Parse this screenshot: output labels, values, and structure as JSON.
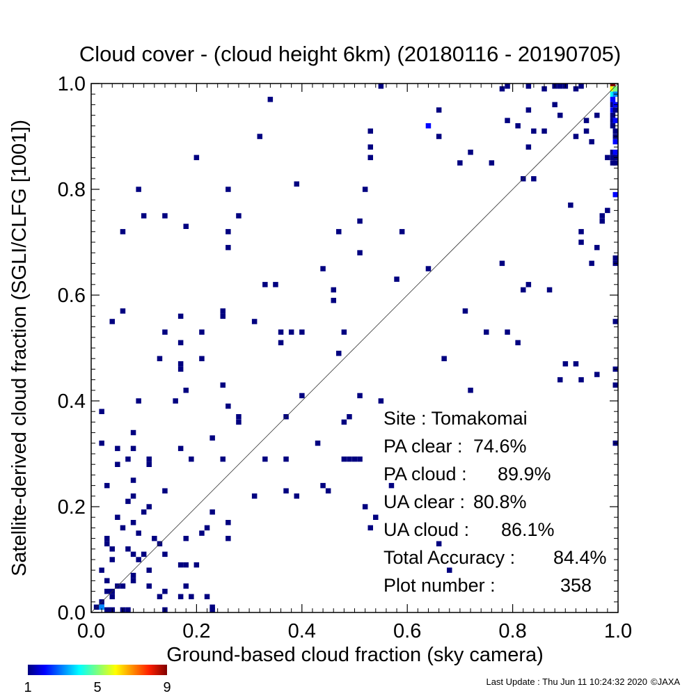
{
  "chart_data": {
    "type": "heatmap",
    "title": "Cloud cover - (cloud height 6km)  (20180116 - 20190705)",
    "xlabel": "Ground-based cloud fraction (sky camera)",
    "ylabel": "Satellite-derived cloud fraction (SGLI/CLFG [1001])",
    "xlim": [
      0.0,
      1.0
    ],
    "ylim": [
      0.0,
      1.0
    ],
    "x_ticks": [
      "0.0",
      "0.2",
      "0.4",
      "0.6",
      "0.8",
      "1.0"
    ],
    "y_ticks": [
      "0.0",
      "0.2",
      "0.4",
      "0.6",
      "0.8",
      "1.0"
    ],
    "grid": false,
    "reference_line": "1:1 diagonal",
    "colorbar": {
      "min": 1,
      "max": 9,
      "tick_labels": [
        "1",
        "5",
        "9"
      ]
    },
    "stats": [
      {
        "label": "Site : Tomakomai",
        "value": ""
      },
      {
        "label": "PA clear :",
        "value": "74.6%"
      },
      {
        "label": "PA cloud :",
        "value": "89.9%"
      },
      {
        "label": "UA clear :",
        "value": "80.8%"
      },
      {
        "label": "UA cloud :",
        "value": "86.1%"
      },
      {
        "label": "Total Accuracy :",
        "value": "84.4%"
      },
      {
        "label": "Plot number :",
        "value": "358"
      }
    ],
    "points": [
      [
        0.2,
        0.86,
        1
      ],
      [
        0.34,
        0.97,
        1
      ],
      [
        0.32,
        0.9,
        1
      ],
      [
        0.55,
        1.0,
        1
      ],
      [
        0.53,
        0.91,
        1
      ],
      [
        0.53,
        0.88,
        1
      ],
      [
        0.53,
        0.86,
        1
      ],
      [
        0.64,
        0.92,
        2
      ],
      [
        0.66,
        0.95,
        1
      ],
      [
        0.66,
        0.9,
        1
      ],
      [
        0.7,
        0.85,
        1
      ],
      [
        0.72,
        0.87,
        1
      ],
      [
        0.76,
        0.85,
        1
      ],
      [
        0.79,
        1.0,
        1
      ],
      [
        0.79,
        0.93,
        1
      ],
      [
        0.81,
        0.92,
        1
      ],
      [
        0.83,
        0.95,
        1
      ],
      [
        0.83,
        0.88,
        1
      ],
      [
        0.84,
        0.91,
        1
      ],
      [
        0.86,
        0.91,
        1
      ],
      [
        0.82,
        0.82,
        1
      ],
      [
        0.84,
        0.82,
        1
      ],
      [
        0.78,
        0.99,
        1
      ],
      [
        0.83,
        1.0,
        1
      ],
      [
        0.86,
        0.99,
        1
      ],
      [
        0.88,
        1.0,
        1
      ],
      [
        0.89,
        1.0,
        1
      ],
      [
        0.9,
        1.0,
        1
      ],
      [
        0.93,
        1.0,
        1
      ],
      [
        0.92,
        0.99,
        1
      ],
      [
        0.88,
        0.96,
        1
      ],
      [
        0.89,
        0.94,
        1
      ],
      [
        0.92,
        0.9,
        1
      ],
      [
        0.94,
        0.93,
        1
      ],
      [
        0.94,
        0.91,
        1
      ],
      [
        0.95,
        0.89,
        1
      ],
      [
        0.96,
        0.94,
        1
      ],
      [
        0.91,
        0.77,
        1
      ],
      [
        0.93,
        0.72,
        1
      ],
      [
        0.93,
        0.7,
        1
      ],
      [
        0.96,
        0.69,
        1
      ],
      [
        0.95,
        0.66,
        1
      ],
      [
        0.97,
        0.74,
        1
      ],
      [
        0.97,
        0.75,
        1
      ],
      [
        0.98,
        0.76,
        1
      ],
      [
        0.99,
        1.0,
        9
      ],
      [
        0.99,
        0.99,
        6
      ],
      [
        1.0,
        0.99,
        5
      ],
      [
        0.99,
        0.98,
        4
      ],
      [
        1.0,
        0.98,
        3
      ],
      [
        0.99,
        0.97,
        2
      ],
      [
        0.99,
        0.96,
        1
      ],
      [
        1.0,
        0.96,
        2
      ],
      [
        0.99,
        0.95,
        2
      ],
      [
        1.0,
        0.95,
        1
      ],
      [
        0.99,
        0.94,
        1
      ],
      [
        0.99,
        0.93,
        1
      ],
      [
        1.0,
        0.93,
        2
      ],
      [
        0.99,
        0.92,
        1
      ],
      [
        1.0,
        0.91,
        1
      ],
      [
        1.0,
        0.9,
        1
      ],
      [
        1.0,
        0.89,
        2
      ],
      [
        0.99,
        0.87,
        1
      ],
      [
        1.0,
        0.87,
        2
      ],
      [
        0.98,
        0.86,
        1
      ],
      [
        0.99,
        0.86,
        1
      ],
      [
        1.0,
        0.86,
        1
      ],
      [
        0.99,
        0.85,
        1
      ],
      [
        1.0,
        0.85,
        1
      ],
      [
        1.0,
        0.79,
        2
      ],
      [
        1.0,
        0.67,
        1
      ],
      [
        1.0,
        0.66,
        1
      ],
      [
        1.0,
        0.55,
        1
      ],
      [
        1.0,
        0.46,
        1
      ],
      [
        1.0,
        0.43,
        1
      ],
      [
        1.0,
        0.32,
        1
      ],
      [
        0.96,
        0.45,
        1
      ],
      [
        0.92,
        0.47,
        1
      ],
      [
        0.93,
        0.44,
        1
      ],
      [
        0.9,
        0.47,
        1
      ],
      [
        0.89,
        0.44,
        1
      ],
      [
        0.87,
        0.61,
        1
      ],
      [
        0.83,
        0.62,
        1
      ],
      [
        0.82,
        0.61,
        1
      ],
      [
        0.78,
        0.66,
        1
      ],
      [
        0.79,
        0.53,
        1
      ],
      [
        0.81,
        0.51,
        1
      ],
      [
        0.75,
        0.53,
        1
      ],
      [
        0.71,
        0.57,
        1
      ],
      [
        0.72,
        0.42,
        1
      ],
      [
        0.67,
        0.48,
        1
      ],
      [
        0.64,
        0.65,
        1
      ],
      [
        0.59,
        0.72,
        1
      ],
      [
        0.58,
        0.63,
        1
      ],
      [
        0.52,
        0.8,
        1
      ],
      [
        0.51,
        0.74,
        1
      ],
      [
        0.51,
        0.68,
        1
      ],
      [
        0.47,
        0.72,
        1
      ],
      [
        0.44,
        0.65,
        1
      ],
      [
        0.46,
        0.61,
        1
      ],
      [
        0.46,
        0.59,
        1
      ],
      [
        0.47,
        0.49,
        1
      ],
      [
        0.48,
        0.53,
        1
      ],
      [
        0.39,
        0.81,
        1
      ],
      [
        0.26,
        0.8,
        1
      ],
      [
        0.28,
        0.75,
        1
      ],
      [
        0.26,
        0.72,
        1
      ],
      [
        0.26,
        0.69,
        1
      ],
      [
        0.33,
        0.62,
        1
      ],
      [
        0.35,
        0.62,
        1
      ],
      [
        0.31,
        0.55,
        1
      ],
      [
        0.36,
        0.53,
        1
      ],
      [
        0.36,
        0.51,
        1
      ],
      [
        0.38,
        0.53,
        1
      ],
      [
        0.4,
        0.53,
        1
      ],
      [
        0.25,
        0.57,
        1
      ],
      [
        0.25,
        0.56,
        1
      ],
      [
        0.21,
        0.53,
        1
      ],
      [
        0.21,
        0.48,
        1
      ],
      [
        0.17,
        0.56,
        1
      ],
      [
        0.17,
        0.51,
        1
      ],
      [
        0.17,
        0.47,
        1
      ],
      [
        0.17,
        0.46,
        1
      ],
      [
        0.14,
        0.53,
        1
      ],
      [
        0.13,
        0.48,
        1
      ],
      [
        0.14,
        0.75,
        1
      ],
      [
        0.18,
        0.73,
        1
      ],
      [
        0.09,
        0.8,
        1
      ],
      [
        0.1,
        0.75,
        1
      ],
      [
        0.06,
        0.72,
        1
      ],
      [
        0.06,
        0.57,
        1
      ],
      [
        0.04,
        0.55,
        1
      ],
      [
        0.09,
        0.4,
        1
      ],
      [
        0.16,
        0.4,
        1
      ],
      [
        0.18,
        0.42,
        1
      ],
      [
        0.25,
        0.43,
        1
      ],
      [
        0.26,
        0.39,
        1
      ],
      [
        0.28,
        0.37,
        1
      ],
      [
        0.28,
        0.36,
        1
      ],
      [
        0.23,
        0.33,
        1
      ],
      [
        0.25,
        0.29,
        1
      ],
      [
        0.19,
        0.29,
        1
      ],
      [
        0.17,
        0.31,
        1
      ],
      [
        0.11,
        0.29,
        1
      ],
      [
        0.11,
        0.28,
        1
      ],
      [
        0.08,
        0.34,
        1
      ],
      [
        0.07,
        0.29,
        1
      ],
      [
        0.05,
        0.31,
        1
      ],
      [
        0.05,
        0.28,
        1
      ],
      [
        0.02,
        0.38,
        1
      ],
      [
        0.02,
        0.32,
        1
      ],
      [
        0.08,
        0.31,
        1
      ],
      [
        0.08,
        0.25,
        1
      ],
      [
        0.03,
        0.24,
        1
      ],
      [
        0.08,
        0.22,
        1
      ],
      [
        0.07,
        0.21,
        1
      ],
      [
        0.14,
        0.23,
        1
      ],
      [
        0.11,
        0.2,
        1
      ],
      [
        0.08,
        0.17,
        1
      ],
      [
        0.05,
        0.18,
        1
      ],
      [
        0.06,
        0.16,
        1
      ],
      [
        0.03,
        0.14,
        1
      ],
      [
        0.03,
        0.13,
        1
      ],
      [
        0.04,
        0.12,
        1
      ],
      [
        0.04,
        0.1,
        1
      ],
      [
        0.02,
        0.08,
        1
      ],
      [
        0.03,
        0.06,
        1
      ],
      [
        0.05,
        0.05,
        1
      ],
      [
        0.06,
        0.05,
        1
      ],
      [
        0.04,
        0.04,
        1
      ],
      [
        0.03,
        0.04,
        1
      ],
      [
        0.04,
        0.03,
        1
      ],
      [
        0.02,
        0.02,
        1
      ],
      [
        0.02,
        0.01,
        3
      ],
      [
        0.01,
        0.01,
        1
      ],
      [
        0.03,
        0.0,
        1
      ],
      [
        0.04,
        0.0,
        1
      ],
      [
        0.06,
        0.0,
        1
      ],
      [
        0.07,
        0.0,
        1
      ],
      [
        0.08,
        0.07,
        1
      ],
      [
        0.08,
        0.06,
        1
      ],
      [
        0.07,
        0.12,
        1
      ],
      [
        0.08,
        0.11,
        1
      ],
      [
        0.09,
        0.1,
        1
      ],
      [
        0.1,
        0.11,
        1
      ],
      [
        0.11,
        0.08,
        1
      ],
      [
        0.12,
        0.14,
        1
      ],
      [
        0.13,
        0.13,
        1
      ],
      [
        0.14,
        0.11,
        1
      ],
      [
        0.18,
        0.14,
        1
      ],
      [
        0.11,
        0.05,
        1
      ],
      [
        0.13,
        0.03,
        1
      ],
      [
        0.14,
        0.04,
        1
      ],
      [
        0.14,
        0.0,
        1
      ],
      [
        0.17,
        0.09,
        1
      ],
      [
        0.18,
        0.09,
        1
      ],
      [
        0.18,
        0.05,
        1
      ],
      [
        0.17,
        0.03,
        1
      ],
      [
        0.19,
        0.03,
        1
      ],
      [
        0.2,
        0.09,
        1
      ],
      [
        0.22,
        0.03,
        1
      ],
      [
        0.23,
        0.01,
        1
      ],
      [
        0.23,
        0.0,
        1
      ],
      [
        0.22,
        0.16,
        1
      ],
      [
        0.23,
        0.19,
        1
      ],
      [
        0.26,
        0.17,
        1
      ],
      [
        0.26,
        0.14,
        1
      ],
      [
        0.21,
        0.15,
        1
      ],
      [
        0.09,
        0.15,
        1
      ],
      [
        0.1,
        0.19,
        1
      ],
      [
        0.31,
        0.22,
        1
      ],
      [
        0.33,
        0.29,
        1
      ],
      [
        0.37,
        0.29,
        1
      ],
      [
        0.37,
        0.23,
        1
      ],
      [
        0.39,
        0.22,
        1
      ],
      [
        0.37,
        0.37,
        1
      ],
      [
        0.4,
        0.41,
        1
      ],
      [
        0.43,
        0.32,
        1
      ],
      [
        0.44,
        0.24,
        1
      ],
      [
        0.45,
        0.23,
        1
      ],
      [
        0.48,
        0.36,
        1
      ],
      [
        0.49,
        0.37,
        1
      ],
      [
        0.48,
        0.29,
        1
      ],
      [
        0.49,
        0.29,
        1
      ],
      [
        0.5,
        0.29,
        1
      ],
      [
        0.51,
        0.29,
        1
      ],
      [
        0.51,
        0.41,
        1
      ],
      [
        0.52,
        0.2,
        1
      ],
      [
        0.53,
        0.16,
        1
      ],
      [
        0.54,
        0.18,
        1
      ],
      [
        0.55,
        0.4,
        1
      ],
      [
        0.57,
        0.24,
        1
      ],
      [
        0.66,
        0.13,
        1
      ],
      [
        0.68,
        0.08,
        1
      ]
    ]
  },
  "footer": {
    "last_update": "Last Update : Thu Jun 11 10:24:32 2020",
    "copyright": "©JAXA"
  }
}
